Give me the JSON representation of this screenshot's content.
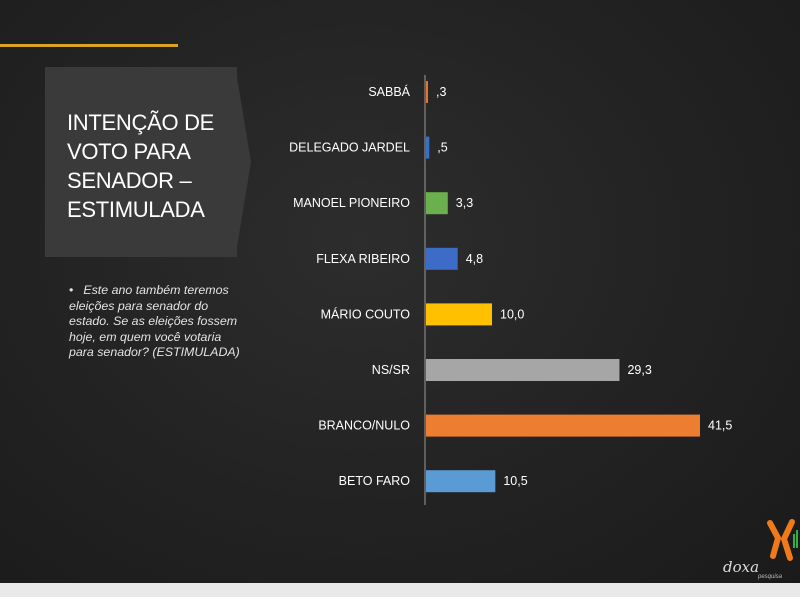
{
  "slide": {
    "title": "INTENÇÃO DE\nVOTO PARA\nSENADOR –\nESTIMULADA",
    "bullet_marker": "•",
    "bullet_text": "Este ano também teremos eleições para senador do estado. Se as eleições fossem hoje, em quem você votaria para senador? (ESTIMULADA)"
  },
  "logo": {
    "word": "doxa",
    "sub": "pesquisa",
    "colors": [
      "#f07a1a",
      "#2fae4a"
    ]
  },
  "chart_data": {
    "type": "bar",
    "orientation": "horizontal",
    "categories": [
      "SABBÁ",
      "DELEGADO JARDEL",
      "MANOEL PIONEIRO",
      "FLEXA RIBEIRO",
      "MÁRIO COUTO",
      "NS/SR",
      "BRANCO/NULO",
      "BETO FARO"
    ],
    "values": [
      0.3,
      0.5,
      3.3,
      4.8,
      10.0,
      29.3,
      41.5,
      10.5
    ],
    "value_labels": [
      ",3",
      ",5",
      "3,3",
      "4,8",
      "10,0",
      "29,3",
      "41,5",
      "10,5"
    ],
    "colors": [
      "#e8742e",
      "#3a6fc6",
      "#6ab04c",
      "#3d6cc8",
      "#ffc000",
      "#a6a6a6",
      "#ed7d31",
      "#5b9bd5"
    ],
    "xlim": [
      0,
      41.5
    ],
    "title": "",
    "xlabel": "",
    "ylabel": ""
  }
}
